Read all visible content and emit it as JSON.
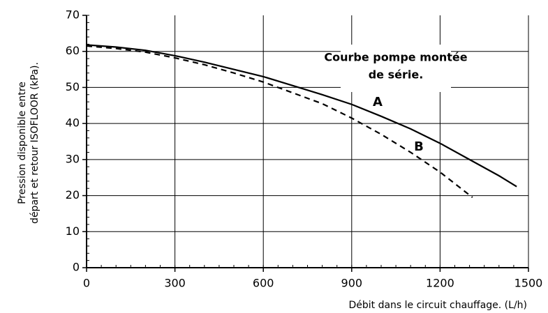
{
  "chart_data": {
    "type": "line",
    "x_label": "Débit dans le circuit chauffage. (L/h)",
    "y_label": [
      "Pression disponible entre",
      "départ et retour ISOFLOOR (kPa)."
    ],
    "annotation": [
      "Courbe pompe montée",
      "de série."
    ],
    "x": [
      0,
      100,
      200,
      300,
      400,
      500,
      600,
      700,
      800,
      900,
      1000,
      1100,
      1200,
      1300,
      1400,
      1460
    ],
    "series": [
      {
        "name": "A",
        "color": "#000000",
        "dash": false,
        "values": [
          61.8,
          61.2,
          60.3,
          58.8,
          57,
          55,
          53,
          50.5,
          48,
          45.3,
          42,
          38.5,
          34.5,
          30,
          25.5,
          22.5
        ]
      },
      {
        "name": "B",
        "color": "#000000",
        "dash": true,
        "x": [
          0,
          100,
          200,
          300,
          400,
          500,
          600,
          700,
          800,
          900,
          1000,
          1100,
          1200,
          1310
        ],
        "values": [
          61.5,
          60.8,
          59.8,
          58.2,
          56.3,
          54,
          51.5,
          48.5,
          45.5,
          41.5,
          37,
          32,
          26.5,
          19.5
        ]
      }
    ],
    "xlim": [
      0,
      1500
    ],
    "xticks": [
      0,
      300,
      600,
      900,
      1200,
      1500
    ],
    "ylim": [
      0,
      70
    ],
    "yticks": [
      0,
      10,
      20,
      30,
      40,
      50,
      60,
      70
    ],
    "grid": true
  }
}
